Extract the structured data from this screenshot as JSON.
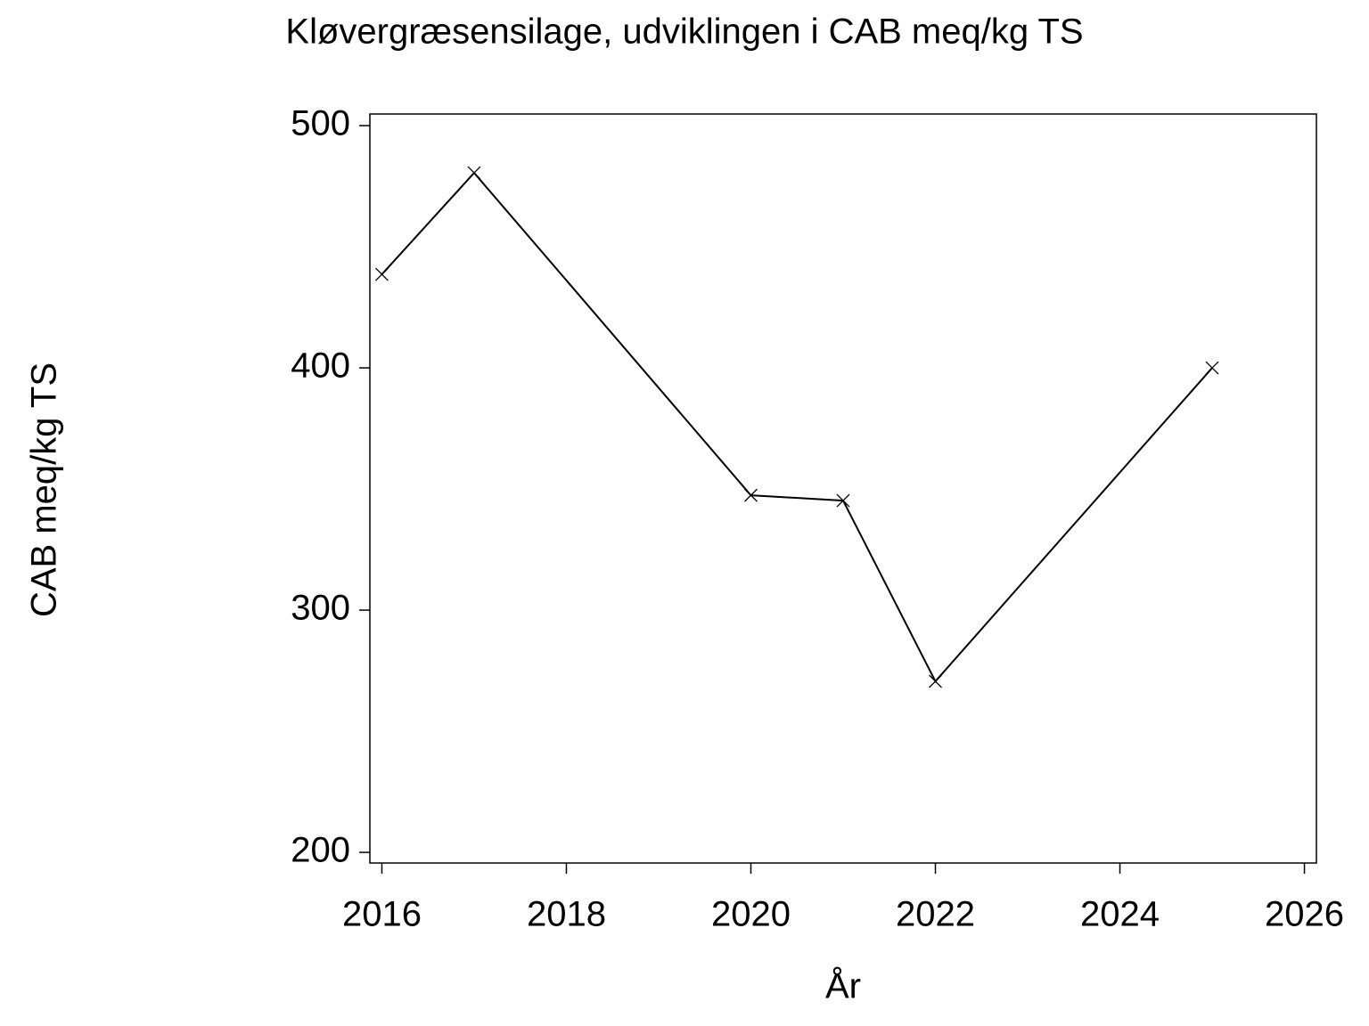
{
  "chart_data": {
    "type": "line",
    "title": "Kløvergræsensilage,  udviklingen  i  CAB  meq/kg  TS",
    "x_label": "År",
    "y_label": "CAB  meq/kg  TS",
    "x": [
      2016,
      2017,
      2020,
      2021,
      2022,
      2025
    ],
    "values": [
      438.6,
      480.5,
      347.4,
      345.2,
      270.6,
      400
    ],
    "color": "#000000",
    "marker": "x",
    "xlim": [
      2015.87,
      2026.13
    ],
    "xticks": [
      2016,
      2018,
      2020,
      2022,
      2024,
      2026
    ],
    "ylim": [
      195.6,
      504.8
    ],
    "yticks": [
      200,
      300,
      400,
      500
    ]
  }
}
